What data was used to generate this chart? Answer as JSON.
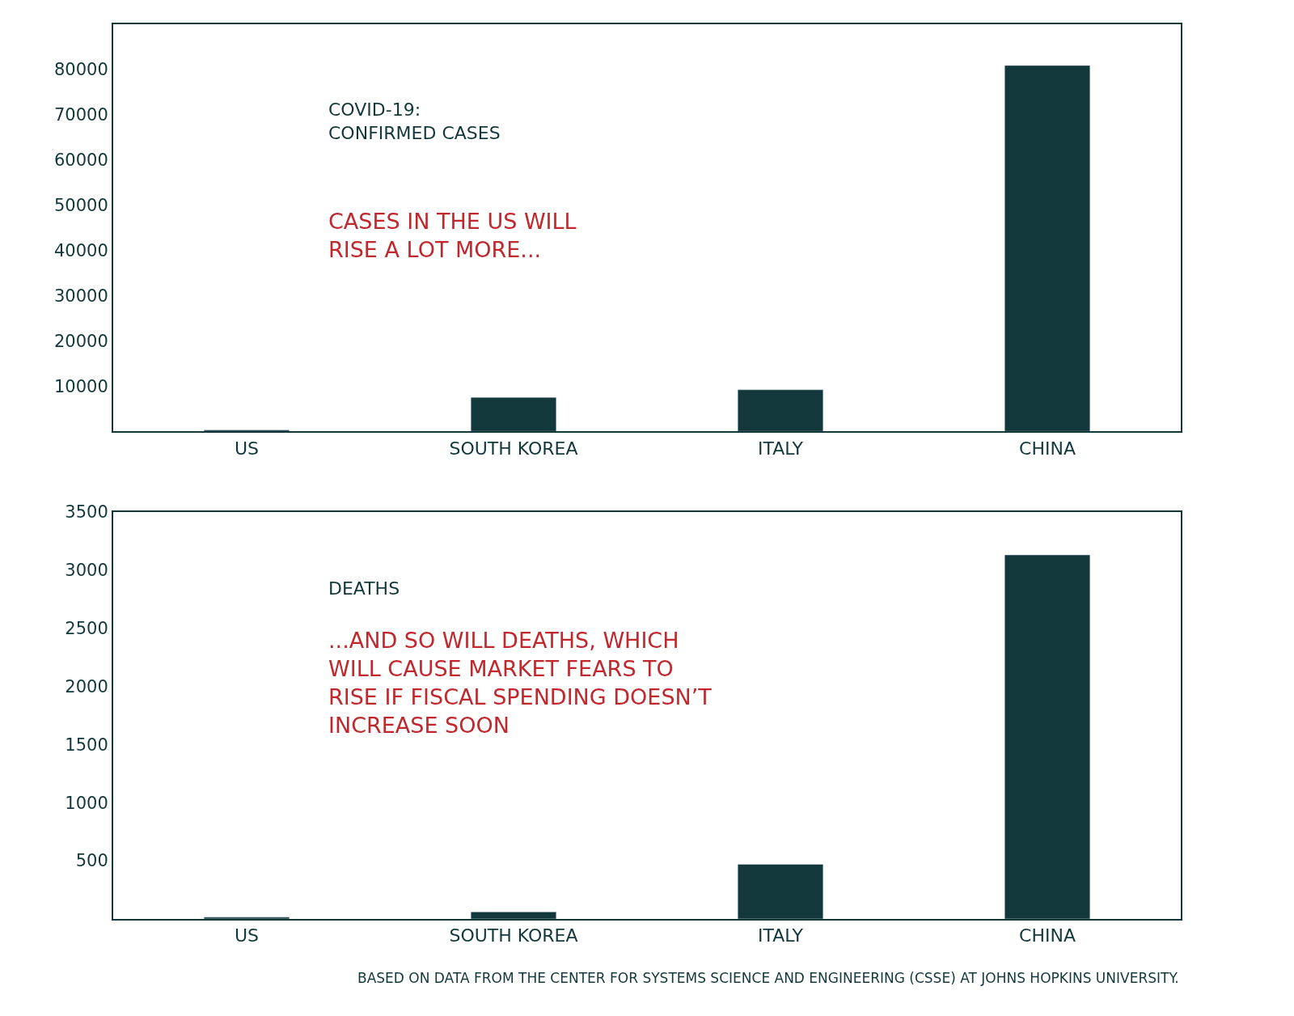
{
  "chart_data": [
    {
      "type": "bar",
      "title": "COVID-19:\nCONFIRMED CASES",
      "categories": [
        "US",
        "SOUTH KOREA",
        "ITALY",
        "CHINA"
      ],
      "values": [
        300,
        7500,
        9200,
        80900
      ],
      "color": "#12383c",
      "ylim": [
        0,
        90000
      ],
      "yticks": [
        10000,
        20000,
        30000,
        40000,
        50000,
        60000,
        70000,
        80000
      ],
      "annotations": [
        "CASES IN THE US WILL\nRISE A LOT MORE..."
      ]
    },
    {
      "type": "bar",
      "title": "DEATHS",
      "categories": [
        "US",
        "SOUTH KOREA",
        "ITALY",
        "CHINA"
      ],
      "values": [
        15,
        60,
        470,
        3130
      ],
      "color": "#12383c",
      "ylim": [
        0,
        3500
      ],
      "yticks": [
        500,
        1000,
        1500,
        2000,
        2500,
        3000,
        3500
      ],
      "annotations": [
        "...AND SO WILL DEATHS, WHICH\nWILL CAUSE MARKET FEARS TO\nRISE IF FISCAL SPENDING DOESN’T\nINCREASE SOON",
        "BASED ON DATA FROM THE CENTER FOR SYSTEMS SCIENCE AND ENGINEERING (CSSE) AT JOHNS HOPKINS UNIVERSITY."
      ]
    }
  ]
}
